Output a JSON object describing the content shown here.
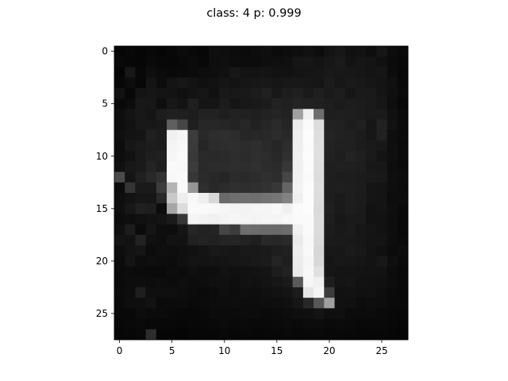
{
  "chart_data": {
    "type": "heatmap",
    "title": "class: 4 p: 0.999",
    "xlabel": "",
    "ylabel": "",
    "colormap": "gray",
    "grid": false,
    "legend": "none",
    "xlim": [
      -0.5,
      27.5
    ],
    "ylim": [
      27.5,
      -0.5
    ],
    "xticks": [
      0,
      5,
      10,
      15,
      20,
      25
    ],
    "yticks": [
      0,
      5,
      10,
      15,
      20,
      25
    ],
    "xtick_labels": [
      "0",
      "5",
      "10",
      "15",
      "20",
      "25"
    ],
    "ytick_labels": [
      "0",
      "5",
      "10",
      "15",
      "20",
      "25"
    ],
    "value_range": [
      0,
      255
    ],
    "pixels": [
      [
        6,
        8,
        6,
        8,
        6,
        8,
        12,
        9,
        7,
        15,
        14,
        12,
        11,
        13,
        15,
        11,
        13,
        14,
        17,
        13,
        19,
        23,
        17,
        18,
        14,
        23,
        13,
        10
      ],
      [
        9,
        7,
        6,
        10,
        8,
        7,
        9,
        11,
        8,
        14,
        15,
        13,
        12,
        12,
        14,
        15,
        16,
        21,
        22,
        19,
        23,
        26,
        19,
        22,
        20,
        17,
        11,
        9
      ],
      [
        5,
        23,
        8,
        14,
        11,
        9,
        10,
        11,
        13,
        14,
        17,
        23,
        19,
        19,
        20,
        18,
        18,
        20,
        21,
        22,
        25,
        24,
        24,
        22,
        20,
        22,
        12,
        8
      ],
      [
        7,
        13,
        7,
        20,
        12,
        20,
        23,
        19,
        16,
        18,
        22,
        19,
        22,
        23,
        24,
        22,
        24,
        24,
        23,
        22,
        28,
        23,
        26,
        25,
        22,
        20,
        16,
        9
      ],
      [
        18,
        8,
        20,
        22,
        20,
        19,
        15,
        19,
        22,
        17,
        25,
        24,
        25,
        28,
        32,
        24,
        29,
        32,
        26,
        31,
        26,
        29,
        22,
        26,
        26,
        21,
        15,
        10
      ],
      [
        9,
        12,
        24,
        23,
        14,
        24,
        19,
        31,
        21,
        21,
        28,
        21,
        24,
        25,
        27,
        34,
        32,
        36,
        34,
        32,
        30,
        27,
        29,
        28,
        26,
        22,
        14,
        8
      ],
      [
        14,
        20,
        24,
        21,
        29,
        32,
        31,
        29,
        34,
        34,
        30,
        34,
        33,
        31,
        34,
        37,
        34,
        160,
        240,
        110,
        30,
        31,
        30,
        28,
        26,
        27,
        17,
        11
      ],
      [
        13,
        18,
        24,
        24,
        25,
        95,
        70,
        31,
        39,
        39,
        38,
        35,
        39,
        33,
        38,
        42,
        37,
        235,
        250,
        220,
        34,
        33,
        29,
        32,
        22,
        34,
        18,
        11
      ],
      [
        15,
        19,
        20,
        32,
        28,
        240,
        245,
        60,
        41,
        45,
        47,
        44,
        38,
        39,
        40,
        44,
        40,
        238,
        252,
        222,
        36,
        33,
        32,
        28,
        23,
        33,
        14,
        11
      ],
      [
        12,
        23,
        26,
        29,
        27,
        244,
        248,
        58,
        37,
        44,
        45,
        46,
        44,
        46,
        42,
        38,
        45,
        238,
        251,
        223,
        35,
        32,
        32,
        28,
        26,
        24,
        15,
        10
      ],
      [
        13,
        18,
        25,
        31,
        32,
        246,
        250,
        56,
        42,
        41,
        42,
        45,
        43,
        46,
        45,
        40,
        48,
        240,
        252,
        223,
        34,
        30,
        35,
        32,
        26,
        20,
        15,
        10
      ],
      [
        16,
        24,
        26,
        36,
        30,
        250,
        248,
        60,
        42,
        44,
        44,
        46,
        45,
        48,
        44,
        43,
        55,
        240,
        251,
        222,
        31,
        32,
        31,
        30,
        24,
        24,
        14,
        11
      ],
      [
        75,
        21,
        32,
        41,
        50,
        248,
        250,
        55,
        43,
        40,
        37,
        43,
        41,
        44,
        48,
        45,
        70,
        242,
        250,
        220,
        31,
        29,
        29,
        28,
        26,
        25,
        15,
        13
      ],
      [
        12,
        52,
        26,
        26,
        60,
        180,
        250,
        150,
        46,
        40,
        44,
        47,
        46,
        48,
        50,
        55,
        100,
        243,
        252,
        222,
        30,
        31,
        30,
        28,
        21,
        20,
        14,
        12
      ],
      [
        14,
        18,
        23,
        22,
        40,
        200,
        238,
        248,
        238,
        216,
        105,
        110,
        112,
        110,
        115,
        118,
        130,
        240,
        252,
        220,
        30,
        26,
        30,
        27,
        21,
        20,
        12,
        13
      ],
      [
        15,
        23,
        32,
        30,
        12,
        165,
        220,
        250,
        250,
        248,
        246,
        244,
        243,
        245,
        245,
        247,
        240,
        250,
        252,
        218,
        32,
        26,
        29,
        27,
        18,
        20,
        14,
        10
      ],
      [
        12,
        14,
        17,
        19,
        20,
        26,
        55,
        245,
        242,
        240,
        243,
        246,
        244,
        243,
        245,
        244,
        248,
        250,
        250,
        220,
        30,
        23,
        26,
        26,
        18,
        18,
        13,
        9
      ],
      [
        15,
        28,
        11,
        21,
        14,
        13,
        21,
        38,
        34,
        36,
        70,
        60,
        110,
        108,
        107,
        106,
        108,
        240,
        250,
        220,
        29,
        25,
        27,
        22,
        21,
        18,
        14,
        9
      ],
      [
        20,
        18,
        34,
        16,
        14,
        19,
        18,
        32,
        35,
        33,
        36,
        37,
        34,
        31,
        40,
        39,
        42,
        234,
        248,
        218,
        27,
        26,
        25,
        23,
        20,
        20,
        13,
        10
      ],
      [
        13,
        19,
        21,
        12,
        15,
        14,
        16,
        17,
        20,
        25,
        23,
        22,
        25,
        25,
        26,
        30,
        33,
        238,
        249,
        215,
        24,
        23,
        27,
        24,
        19,
        16,
        11,
        13
      ],
      [
        12,
        20,
        13,
        15,
        13,
        12,
        16,
        20,
        19,
        20,
        21,
        22,
        23,
        25,
        27,
        36,
        30,
        236,
        246,
        216,
        22,
        24,
        23,
        22,
        19,
        24,
        15,
        10
      ],
      [
        11,
        12,
        11,
        10,
        10,
        13,
        11,
        15,
        13,
        14,
        18,
        16,
        17,
        19,
        20,
        29,
        34,
        234,
        248,
        224,
        22,
        20,
        20,
        19,
        19,
        18,
        12,
        9
      ],
      [
        11,
        13,
        14,
        12,
        13,
        12,
        14,
        12,
        13,
        16,
        16,
        14,
        18,
        17,
        19,
        22,
        26,
        90,
        246,
        240,
        30,
        20,
        22,
        18,
        17,
        16,
        13,
        9
      ],
      [
        12,
        13,
        30,
        15,
        15,
        15,
        13,
        12,
        10,
        12,
        15,
        13,
        15,
        14,
        16,
        18,
        20,
        28,
        230,
        245,
        60,
        17,
        18,
        16,
        17,
        14,
        10,
        9
      ],
      [
        10,
        14,
        15,
        18,
        10,
        11,
        12,
        10,
        11,
        13,
        13,
        14,
        12,
        13,
        14,
        15,
        16,
        22,
        40,
        88,
        160,
        17,
        16,
        12,
        14,
        13,
        10,
        10
      ],
      [
        9,
        9,
        13,
        11,
        11,
        9,
        8,
        8,
        9,
        12,
        11,
        11,
        12,
        12,
        10,
        11,
        13,
        15,
        16,
        20,
        15,
        16,
        11,
        11,
        12,
        10,
        9,
        8
      ],
      [
        8,
        9,
        10,
        8,
        8,
        8,
        7,
        8,
        8,
        9,
        10,
        9,
        10,
        9,
        9,
        10,
        11,
        10,
        12,
        12,
        10,
        11,
        10,
        9,
        9,
        9,
        8,
        6
      ],
      [
        6,
        7,
        9,
        45,
        6,
        6,
        5,
        7,
        7,
        7,
        8,
        7,
        8,
        7,
        8,
        8,
        9,
        8,
        9,
        9,
        8,
        9,
        8,
        7,
        7,
        7,
        6,
        5
      ]
    ]
  }
}
